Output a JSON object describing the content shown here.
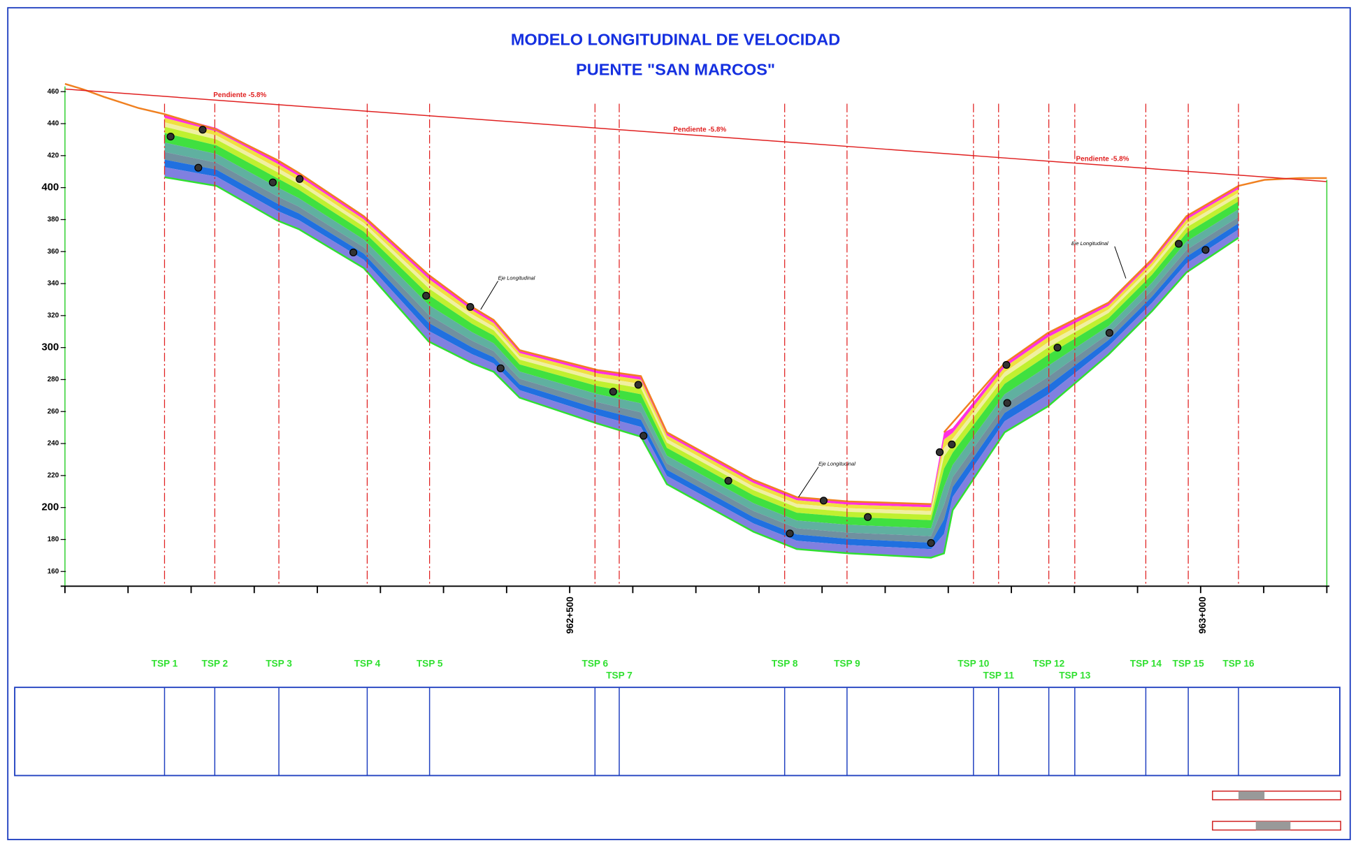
{
  "title": "MODELO LONGITUDINAL DE VELOCIDAD",
  "subtitle": "PUENTE \"SAN MARCOS\"",
  "y_axis_labels": [
    "460",
    "440",
    "420",
    "400",
    "380",
    "360",
    "340",
    "320",
    "300",
    "280",
    "260",
    "240",
    "220",
    "200",
    "180",
    "160"
  ],
  "x_axis_labels": [
    "962+500",
    "963+000"
  ],
  "slope_labels": [
    "Pendiente -5.8%",
    "Pendiente -5.8%",
    "Pendiente -5.8%"
  ],
  "annotations": [
    "Eje Longitudinal",
    "Eje Longitudinal",
    "Eje Longitudinal"
  ],
  "tsp_labels": [
    "TSP 1",
    "TSP 2",
    "TSP 3",
    "TSP 4",
    "TSP 5",
    "TSP 6",
    "TSP 7",
    "TSP 8",
    "TSP 9",
    "TSP 10",
    "TSP 11",
    "TSP 12",
    "TSP 13",
    "TSP 14",
    "TSP 15",
    "TSP 16"
  ]
}
